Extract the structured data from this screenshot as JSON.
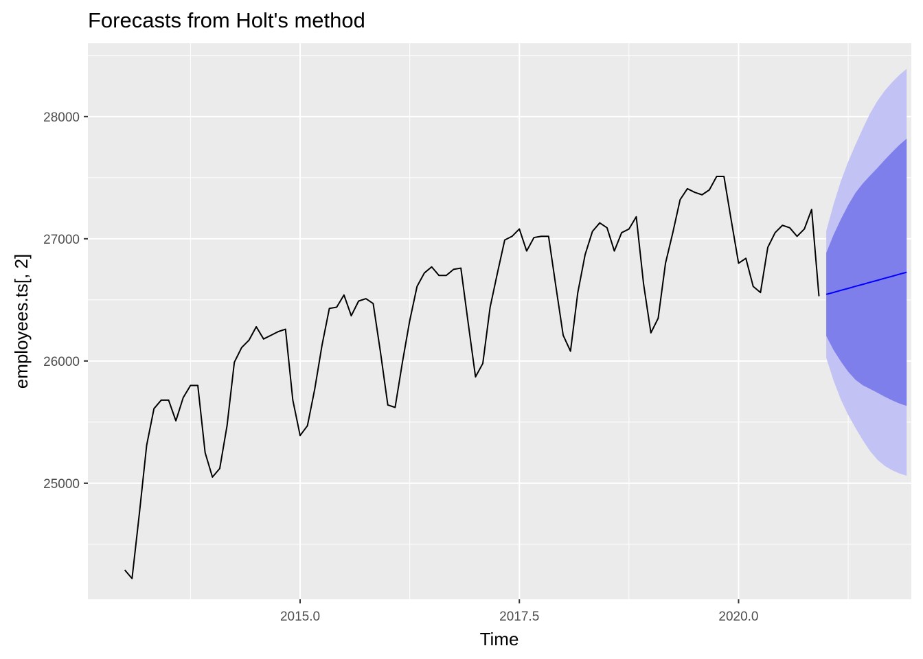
{
  "chart_data": {
    "type": "line",
    "title": "Forecasts from Holt's method",
    "xlabel": "Time",
    "ylabel": "employees.ts[, 2]",
    "xlim": [
      2012.58,
      2021.97
    ],
    "ylim": [
      24050,
      28600
    ],
    "x_ticks": [
      2015.0,
      2017.5,
      2020.0
    ],
    "x_tick_labels": [
      "2015.0",
      "2017.5",
      "2020.0"
    ],
    "y_ticks": [
      25000,
      26000,
      27000,
      28000
    ],
    "y_tick_labels": [
      "25000",
      "26000",
      "27000",
      "28000"
    ],
    "grid": true,
    "colors": {
      "panel_background": "#ebebeb",
      "grid": "#ffffff",
      "observed_line": "#000000",
      "forecast_line": "#0000ff",
      "pi80": "#7f7fec",
      "pi95": "#c2c2f4"
    },
    "series": [
      {
        "start": 2013.0,
        "frequency": 12,
        "values": [
          24290,
          24220,
          24750,
          25310,
          25610,
          25680,
          25680,
          25510,
          25700,
          25800,
          25800,
          25250,
          25050,
          25120,
          25470,
          25990,
          26110,
          26170,
          26280,
          26180,
          26210,
          26240,
          26260,
          25680,
          25390,
          25470,
          25770,
          26130,
          26430,
          26440,
          26540,
          26370,
          26490,
          26510,
          26470,
          26070,
          25640,
          25620,
          25990,
          26330,
          26610,
          26720,
          26770,
          26700,
          26700,
          26750,
          26760,
          26310,
          25870,
          25980,
          26440,
          26720,
          26990,
          27020,
          27080,
          26900,
          27010,
          27020,
          27020,
          26610,
          26210,
          26080,
          26560,
          26870,
          27060,
          27130,
          27090,
          26900,
          27050,
          27080,
          27180,
          26630,
          26230,
          26350,
          26800,
          27050,
          27320,
          27410,
          27380,
          27360,
          27400,
          27510,
          27510,
          27150,
          26800,
          26840,
          26610,
          26560,
          26930,
          27050,
          27110,
          27090,
          27020,
          27080,
          27240,
          26530
        ]
      },
      {
        "start": 2021.0,
        "frequency": 12,
        "values": [
          26545,
          26561,
          26578,
          26594,
          26611,
          26627,
          26644,
          26660,
          26677,
          26693,
          26710,
          26726
        ],
        "lo80": [
          26205,
          26090,
          25996,
          25912,
          25846,
          25801,
          25771,
          25740,
          25708,
          25678,
          25652,
          25633
        ],
        "hi80": [
          26885,
          27033,
          27160,
          27276,
          27376,
          27453,
          27517,
          27580,
          27646,
          27708,
          27768,
          27819
        ],
        "lo95": [
          26025,
          25840,
          25684,
          25558,
          25452,
          25352,
          25262,
          25192,
          25142,
          25106,
          25080,
          25061
        ],
        "hi95": [
          27065,
          27282,
          27472,
          27630,
          27770,
          27902,
          28026,
          28128,
          28212,
          28280,
          28340,
          28391
        ]
      }
    ]
  }
}
